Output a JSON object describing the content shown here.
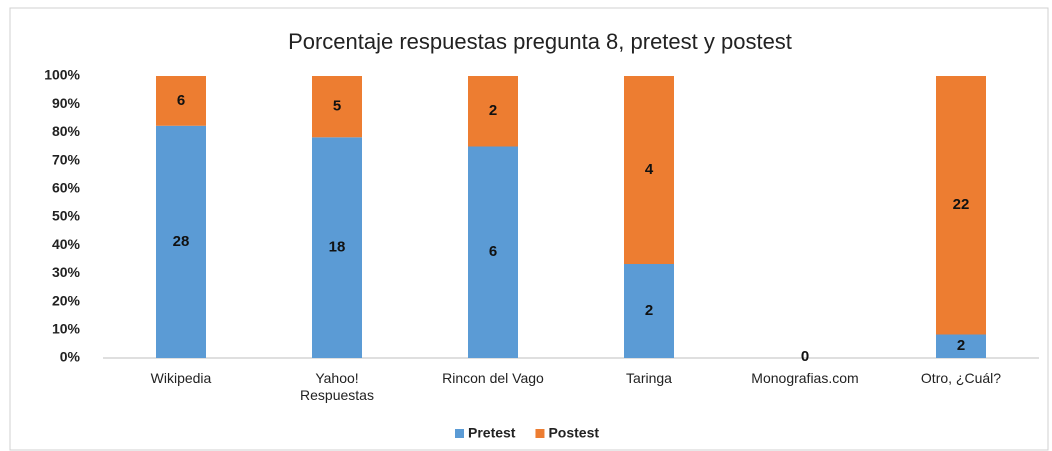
{
  "chart_data": {
    "type": "bar",
    "stacked": "percent",
    "title": "Porcentaje respuestas pregunta 8, pretest y postest",
    "categories": [
      "Wikipedia",
      "Yahoo! Respuestas",
      "Rincon del Vago",
      "Taringa",
      "Monografias.com",
      "Otro, ¿Cuál?"
    ],
    "series": [
      {
        "name": "Pretest",
        "color": "#5b9bd5",
        "values": [
          28,
          18,
          6,
          2,
          0,
          2
        ]
      },
      {
        "name": "Postest",
        "color": "#ed7d31",
        "values": [
          6,
          5,
          2,
          4,
          0,
          22
        ]
      }
    ],
    "ylim": [
      0,
      100
    ],
    "yticks": [
      {
        "value": 0,
        "label": "0%"
      },
      {
        "value": 10,
        "label": "10%"
      },
      {
        "value": 20,
        "label": "20%"
      },
      {
        "value": 30,
        "label": "30%"
      },
      {
        "value": 40,
        "label": "40%"
      },
      {
        "value": 50,
        "label": "50%"
      },
      {
        "value": 60,
        "label": "60%"
      },
      {
        "value": 70,
        "label": "70%"
      },
      {
        "value": 80,
        "label": "80%"
      },
      {
        "value": 90,
        "label": "90%"
      },
      {
        "value": 100,
        "label": "100%"
      }
    ],
    "grid": false,
    "legend": "bottom"
  }
}
